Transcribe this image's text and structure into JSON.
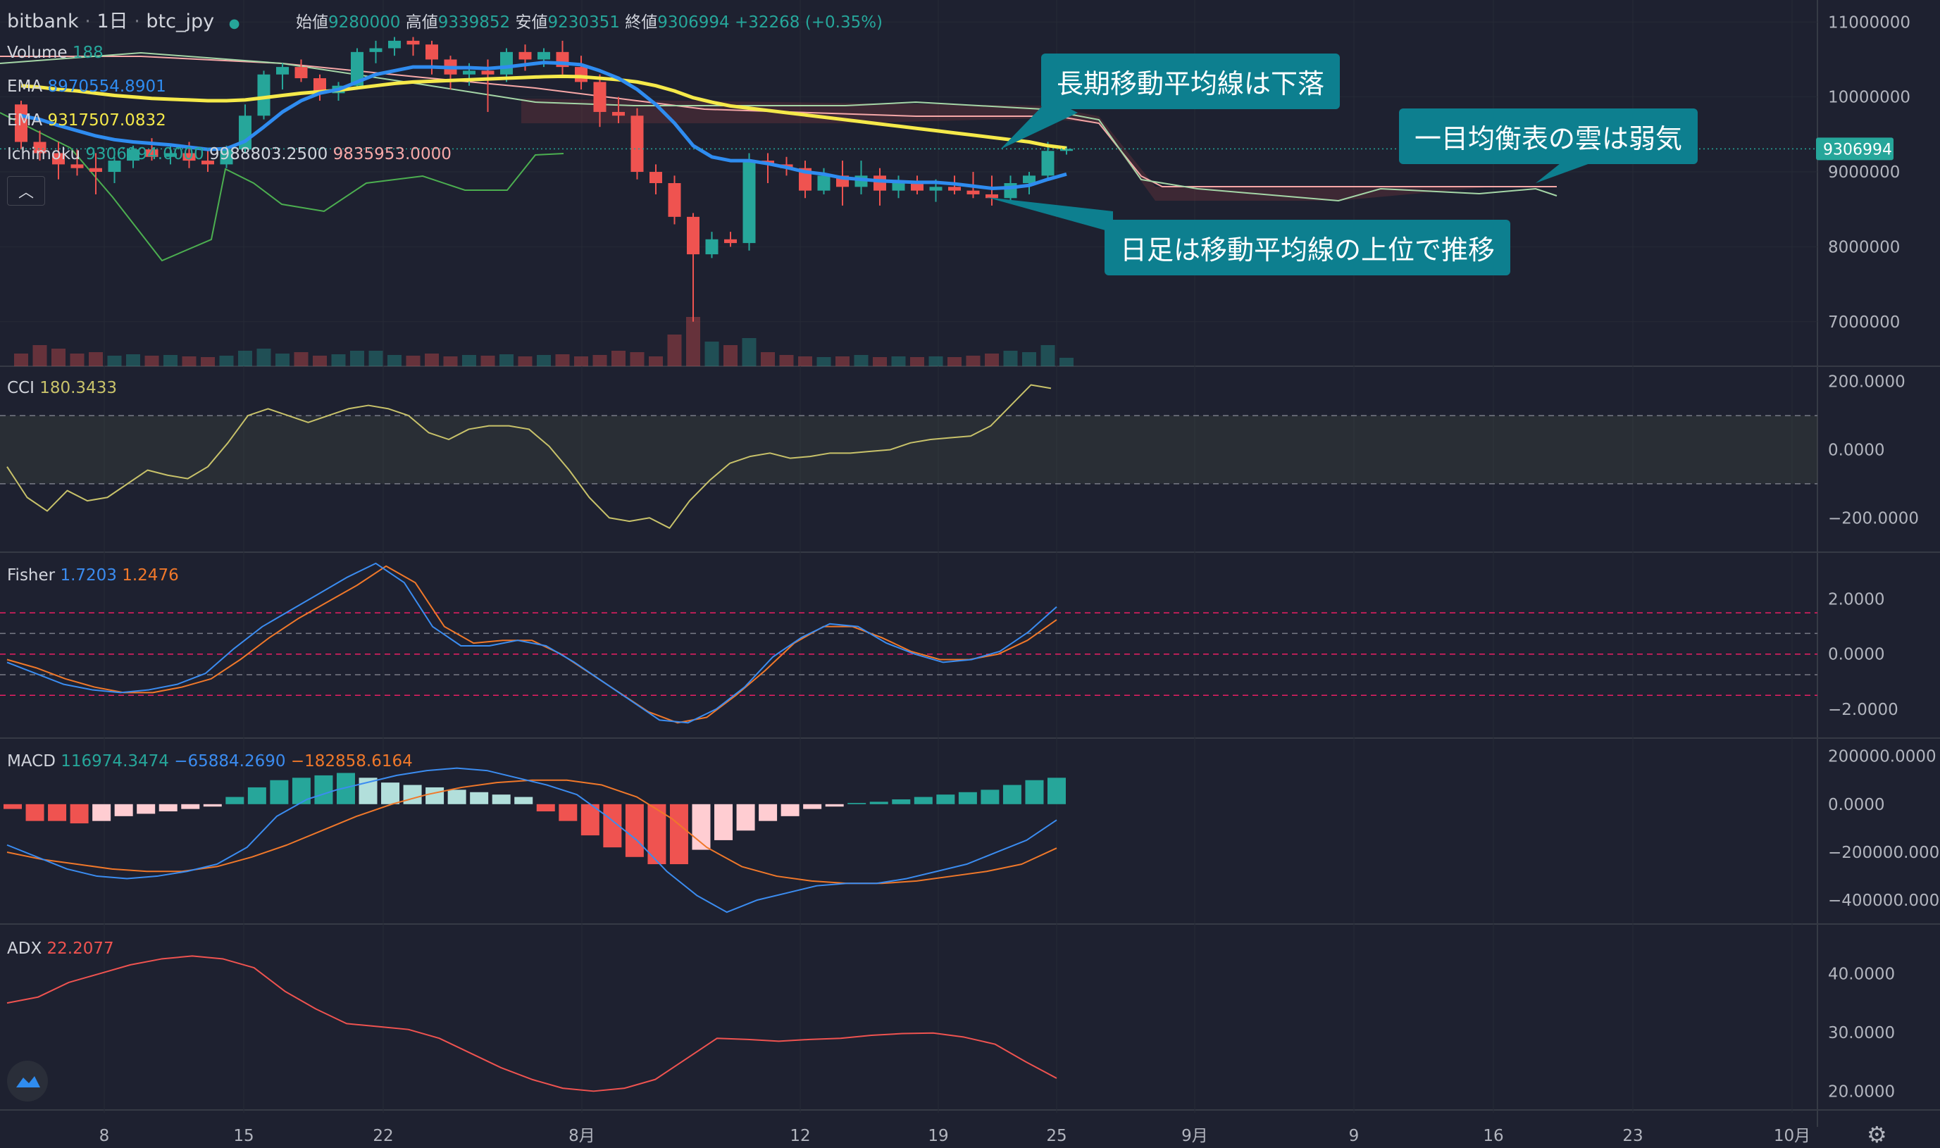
{
  "header": {
    "exchange": "bitbank",
    "interval": "1日",
    "symbol": "btc_jpy",
    "open_label": "始値",
    "open": "9280000",
    "high_label": "高値",
    "high": "9339852",
    "low_label": "安値",
    "low": "9230351",
    "close_label": "終値",
    "close": "9306994",
    "change": "+32268 (+0.35%)"
  },
  "legends": {
    "volume_name": "Volume",
    "volume_value": "188",
    "ema1_name": "EMA",
    "ema1_value": "8970554.8901",
    "ema2_name": "EMA",
    "ema2_value": "9317507.0832",
    "ichimoku_name": "Ichimoku",
    "ichimoku_v1": "9306994.0000",
    "ichimoku_v2": "9988803.2500",
    "ichimoku_v3": "9835953.0000",
    "cci_name": "CCI",
    "cci_value": "180.3433",
    "fisher_name": "Fisher",
    "fisher_v1": "1.7203",
    "fisher_v2": "1.2476",
    "macd_name": "MACD",
    "macd_v1": "116974.3474",
    "macd_v2": "−65884.2690",
    "macd_v3": "−182858.6164",
    "adx_name": "ADX",
    "adx_value": "22.2077"
  },
  "callouts": {
    "long_ma": "長期移動平均線は下落",
    "cloud": "一目均衡表の雲は弱気",
    "daily": "日足は移動平均線の上位で推移"
  },
  "colors": {
    "up": "#26a69a",
    "down": "#ef5350",
    "ema_fast": "#2f8cf0",
    "ema_slow": "#f5e94a",
    "cci": "#c8c26a",
    "fisher1": "#3b8cf0",
    "fisher2": "#f0782a",
    "macd": "#3b8cf0",
    "signal": "#f0782a",
    "adx": "#ef5350",
    "callout": "#0d7f8f"
  },
  "chart_data": [
    {
      "type": "candlestick",
      "title": "bitbank 1日 btc_jpy",
      "x_ticks": [
        "8",
        "15",
        "22",
        "8月",
        "12",
        "19",
        "25",
        "9月",
        "9",
        "16",
        "23",
        "10月"
      ],
      "y_ticks": [
        "11000000",
        "10000000",
        "9000000",
        "8000000",
        "7000000"
      ],
      "ylim": [
        6500000,
        11200000
      ],
      "last_price_label": "9306994",
      "candles": [
        [
          9900000,
          9950000,
          9300000,
          9400000
        ],
        [
          9400000,
          9550000,
          9150000,
          9250000
        ],
        [
          9250000,
          9400000,
          8900000,
          9100000
        ],
        [
          9100000,
          9300000,
          8950000,
          9050000
        ],
        [
          9050000,
          9250000,
          8700000,
          9000000
        ],
        [
          9000000,
          9200000,
          8850000,
          9150000
        ],
        [
          9150000,
          9350000,
          9050000,
          9300000
        ],
        [
          9300000,
          9450000,
          9150000,
          9200000
        ],
        [
          9200000,
          9350000,
          9100000,
          9250000
        ],
        [
          9250000,
          9400000,
          9050000,
          9150000
        ],
        [
          9150000,
          9300000,
          9000000,
          9100000
        ],
        [
          9100000,
          9350000,
          9050000,
          9300000
        ],
        [
          9300000,
          9900000,
          9250000,
          9750000
        ],
        [
          9750000,
          10350000,
          9700000,
          10300000
        ],
        [
          10300000,
          10450000,
          10100000,
          10400000
        ],
        [
          10400000,
          10500000,
          10200000,
          10250000
        ],
        [
          10250000,
          10300000,
          9950000,
          10050000
        ],
        [
          10050000,
          10200000,
          9950000,
          10150000
        ],
        [
          10150000,
          10650000,
          10100000,
          10600000
        ],
        [
          10600000,
          10750000,
          10450000,
          10650000
        ],
        [
          10650000,
          10800000,
          10550000,
          10750000
        ],
        [
          10750000,
          10800000,
          10550000,
          10700000
        ],
        [
          10700000,
          10750000,
          10300000,
          10500000
        ],
        [
          10500000,
          10550000,
          10100000,
          10300000
        ],
        [
          10300000,
          10450000,
          10150000,
          10350000
        ],
        [
          10350000,
          10500000,
          9800000,
          10300000
        ],
        [
          10300000,
          10650000,
          10200000,
          10600000
        ],
        [
          10600000,
          10700000,
          10350000,
          10500000
        ],
        [
          10500000,
          10650000,
          10400000,
          10600000
        ],
        [
          10600000,
          10750000,
          10300000,
          10400000
        ],
        [
          10400000,
          10550000,
          10100000,
          10200000
        ],
        [
          10200000,
          10300000,
          9600000,
          9800000
        ],
        [
          9800000,
          10000000,
          9650000,
          9750000
        ],
        [
          9750000,
          9850000,
          8900000,
          9000000
        ],
        [
          9000000,
          9100000,
          8700000,
          8850000
        ],
        [
          8850000,
          8950000,
          8300000,
          8400000
        ],
        [
          8400000,
          8450000,
          7000000,
          7900000
        ],
        [
          7900000,
          8200000,
          7850000,
          8100000
        ],
        [
          8100000,
          8200000,
          8000000,
          8050000
        ],
        [
          8050000,
          9250000,
          7950000,
          9150000
        ],
        [
          9150000,
          9250000,
          8850000,
          9100000
        ],
        [
          9100000,
          9200000,
          8950000,
          9050000
        ],
        [
          9050000,
          9150000,
          8650000,
          8750000
        ],
        [
          8750000,
          9050000,
          8700000,
          8950000
        ],
        [
          8950000,
          9150000,
          8550000,
          8800000
        ],
        [
          8800000,
          9150000,
          8700000,
          8950000
        ],
        [
          8950000,
          9050000,
          8550000,
          8750000
        ],
        [
          8750000,
          8950000,
          8650000,
          8850000
        ],
        [
          8850000,
          8950000,
          8700000,
          8750000
        ],
        [
          8750000,
          8900000,
          8600000,
          8800000
        ],
        [
          8800000,
          8950000,
          8700000,
          8750000
        ],
        [
          8750000,
          9000000,
          8650000,
          8700000
        ],
        [
          8700000,
          8950000,
          8550000,
          8650000
        ],
        [
          8650000,
          8950000,
          8600000,
          8850000
        ],
        [
          8850000,
          9000000,
          8700000,
          8950000
        ],
        [
          8950000,
          9400000,
          8900000,
          9280000
        ],
        [
          9280000,
          9339852,
          9230351,
          9306994
        ]
      ],
      "volume": [
        18,
        30,
        25,
        18,
        20,
        15,
        17,
        15,
        16,
        14,
        13,
        15,
        22,
        25,
        18,
        20,
        15,
        17,
        22,
        22,
        16,
        15,
        18,
        14,
        16,
        15,
        17,
        14,
        16,
        17,
        14,
        16,
        22,
        20,
        14,
        45,
        70,
        35,
        30,
        40,
        20,
        16,
        14,
        13,
        14,
        16,
        13,
        14,
        13,
        14,
        13,
        15,
        18,
        22,
        20,
        30,
        12
      ],
      "ema_fast": [
        9750000,
        9700000,
        9620000,
        9550000,
        9480000,
        9430000,
        9400000,
        9380000,
        9360000,
        9330000,
        9300000,
        9310000,
        9410000,
        9600000,
        9800000,
        9950000,
        10050000,
        10100000,
        10200000,
        10300000,
        10350000,
        10400000,
        10400000,
        10390000,
        10390000,
        10380000,
        10400000,
        10430000,
        10460000,
        10450000,
        10430000,
        10350000,
        10250000,
        10100000,
        9900000,
        9650000,
        9350000,
        9200000,
        9150000,
        9150000,
        9110000,
        9060000,
        9000000,
        8970000,
        8920000,
        8900000,
        8880000,
        8870000,
        8860000,
        8860000,
        8840000,
        8810000,
        8780000,
        8790000,
        8820000,
        8900000,
        8970000
      ],
      "ema_slow": [
        10150000,
        10130000,
        10100000,
        10080000,
        10050000,
        10020000,
        10000000,
        9980000,
        9970000,
        9960000,
        9950000,
        9950000,
        9960000,
        9990000,
        10020000,
        10050000,
        10070000,
        10090000,
        10120000,
        10150000,
        10180000,
        10200000,
        10210000,
        10220000,
        10230000,
        10240000,
        10250000,
        10260000,
        10270000,
        10275000,
        10270000,
        10250000,
        10230000,
        10200000,
        10150000,
        10080000,
        9990000,
        9930000,
        9880000,
        9850000,
        9820000,
        9790000,
        9760000,
        9730000,
        9700000,
        9670000,
        9640000,
        9610000,
        9580000,
        9550000,
        9520000,
        9490000,
        9460000,
        9430000,
        9400000,
        9350000,
        9317507
      ]
    },
    {
      "type": "line",
      "name": "CCI",
      "y_ticks": [
        "200.0000",
        "0.0000",
        "−200.0000"
      ],
      "ylim": [
        -280,
        220
      ],
      "band": [
        -100,
        100
      ],
      "values": [
        -50,
        -140,
        -180,
        -120,
        -150,
        -140,
        -100,
        -60,
        -75,
        -85,
        -50,
        20,
        100,
        120,
        100,
        80,
        100,
        120,
        130,
        120,
        100,
        50,
        30,
        60,
        70,
        70,
        60,
        10,
        -60,
        -140,
        -200,
        -210,
        -200,
        -230,
        -150,
        -90,
        -40,
        -20,
        -10,
        -25,
        -20,
        -10,
        -10,
        -5,
        0,
        20,
        30,
        35,
        40,
        70,
        130,
        190,
        180
      ]
    },
    {
      "type": "line",
      "name": "Fisher",
      "y_ticks": [
        "2.0000",
        "0.0000",
        "−2.0000"
      ],
      "ylim": [
        -2.8,
        3.4
      ],
      "levels": [
        1.5,
        0.75,
        0,
        -0.75,
        -1.5
      ],
      "series": [
        {
          "values": [
            -0.3,
            -0.7,
            -1.1,
            -1.3,
            -1.4,
            -1.3,
            -1.1,
            -0.7,
            0.2,
            1.0,
            1.6,
            2.2,
            2.8,
            3.3,
            2.6,
            1.0,
            0.3,
            0.3,
            0.5,
            0.3,
            -0.3,
            -1.0,
            -1.7,
            -2.4,
            -2.5,
            -2.0,
            -1.2,
            -0.1,
            0.6,
            1.1,
            1.0,
            0.4,
            0.0,
            -0.3,
            -0.2,
            0.1,
            0.8,
            1.72
          ]
        },
        {
          "values": [
            -0.2,
            -0.5,
            -0.9,
            -1.2,
            -1.4,
            -1.4,
            -1.2,
            -0.9,
            -0.2,
            0.6,
            1.3,
            1.9,
            2.5,
            3.2,
            2.6,
            1.0,
            0.4,
            0.5,
            0.5,
            0.0,
            -0.7,
            -1.4,
            -2.1,
            -2.5,
            -2.3,
            -1.5,
            -0.6,
            0.4,
            1.0,
            1.0,
            0.6,
            0.1,
            -0.2,
            -0.2,
            0.0,
            0.5,
            1.25
          ]
        }
      ]
    },
    {
      "type": "bar+line",
      "name": "MACD",
      "y_ticks": [
        "200000.0000",
        "0.0000",
        "−200000.0000",
        "−400000.0000"
      ],
      "ylim": [
        -470000,
        240000
      ],
      "histogram": [
        -20000,
        -70000,
        -70000,
        -80000,
        -70000,
        -50000,
        -40000,
        -30000,
        -20000,
        -10000,
        30000,
        70000,
        100000,
        110000,
        120000,
        130000,
        110000,
        90000,
        80000,
        70000,
        60000,
        50000,
        40000,
        30000,
        -30000,
        -70000,
        -130000,
        -180000,
        -220000,
        -250000,
        -250000,
        -190000,
        -150000,
        -110000,
        -70000,
        -50000,
        -20000,
        -10000,
        5000,
        10000,
        20000,
        30000,
        40000,
        50000,
        60000,
        80000,
        100000,
        110000
      ],
      "macd": [
        -170000,
        -220000,
        -270000,
        -300000,
        -310000,
        -300000,
        -280000,
        -250000,
        -180000,
        -50000,
        20000,
        60000,
        90000,
        120000,
        140000,
        150000,
        140000,
        110000,
        80000,
        40000,
        -50000,
        -150000,
        -280000,
        -380000,
        -450000,
        -400000,
        -370000,
        -340000,
        -330000,
        -330000,
        -310000,
        -280000,
        -250000,
        -200000,
        -150000,
        -66000
      ],
      "signal": [
        -200000,
        -230000,
        -250000,
        -270000,
        -280000,
        -280000,
        -260000,
        -220000,
        -170000,
        -110000,
        -50000,
        0,
        40000,
        70000,
        90000,
        100000,
        100000,
        80000,
        30000,
        -60000,
        -180000,
        -260000,
        -300000,
        -320000,
        -330000,
        -330000,
        -320000,
        -300000,
        -280000,
        -250000,
        -183000
      ]
    },
    {
      "type": "line",
      "name": "ADX",
      "y_ticks": [
        "40.0000",
        "30.0000",
        "20.0000"
      ],
      "ylim": [
        18,
        47
      ],
      "values": [
        35,
        36,
        38.5,
        40,
        41.5,
        42.5,
        43,
        42.5,
        41,
        37,
        34,
        31.5,
        31,
        30.5,
        29,
        26.5,
        24,
        22,
        20.5,
        20,
        20.5,
        22,
        25.5,
        29,
        28.8,
        28.5,
        28.8,
        29,
        29.5,
        29.8,
        29.9,
        29.2,
        28,
        25,
        22.2
      ]
    }
  ]
}
